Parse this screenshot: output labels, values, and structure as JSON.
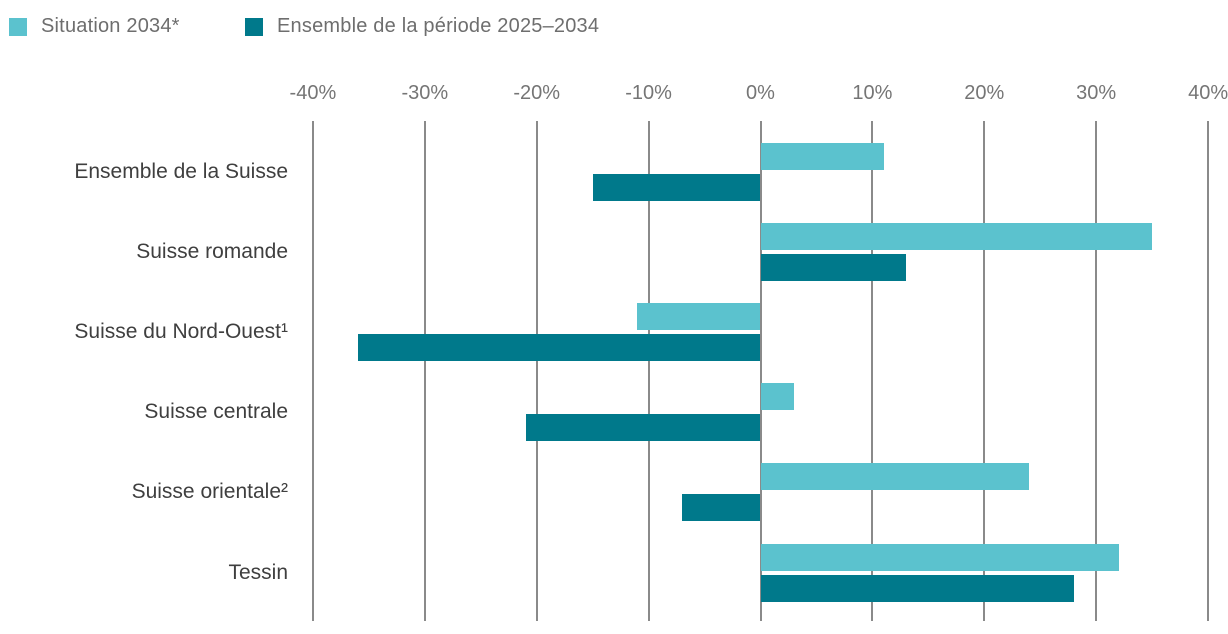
{
  "chart_data": {
    "type": "bar",
    "orientation": "horizontal",
    "title": "",
    "categories": [
      "Ensemble de la Suisse",
      "Suisse romande",
      "Suisse du Nord-Ouest¹",
      "Suisse centrale",
      "Suisse orientale²",
      "Tessin"
    ],
    "series": [
      {
        "name": "Situation 2034*",
        "color": "#5BC2CE",
        "values": [
          11,
          35,
          -11,
          3,
          24,
          32
        ]
      },
      {
        "name": "Ensemble de la période 2025–2034",
        "color": "#00798B",
        "values": [
          -15,
          13,
          -36,
          -21,
          -7,
          28
        ]
      }
    ],
    "unit": "%",
    "xlim": [
      -40,
      40
    ],
    "x_tick_values": [
      -40,
      -30,
      -20,
      -10,
      0,
      10,
      20,
      30,
      40
    ],
    "x_tick_labels": [
      "-40%",
      "-30%",
      "-20%",
      "-10%",
      "0%",
      "10%",
      "20%",
      "30%",
      "40%"
    ],
    "grid": "vertical",
    "legend_position": "top-left"
  },
  "colors": {
    "series_light": "#5BC2CE",
    "series_dark": "#00798B",
    "gridline": "#8a8a8a",
    "axis_label": "#757575",
    "category_label": "#3f3f3f",
    "legend_label": "#6e6e6e",
    "background": "#ffffff"
  }
}
